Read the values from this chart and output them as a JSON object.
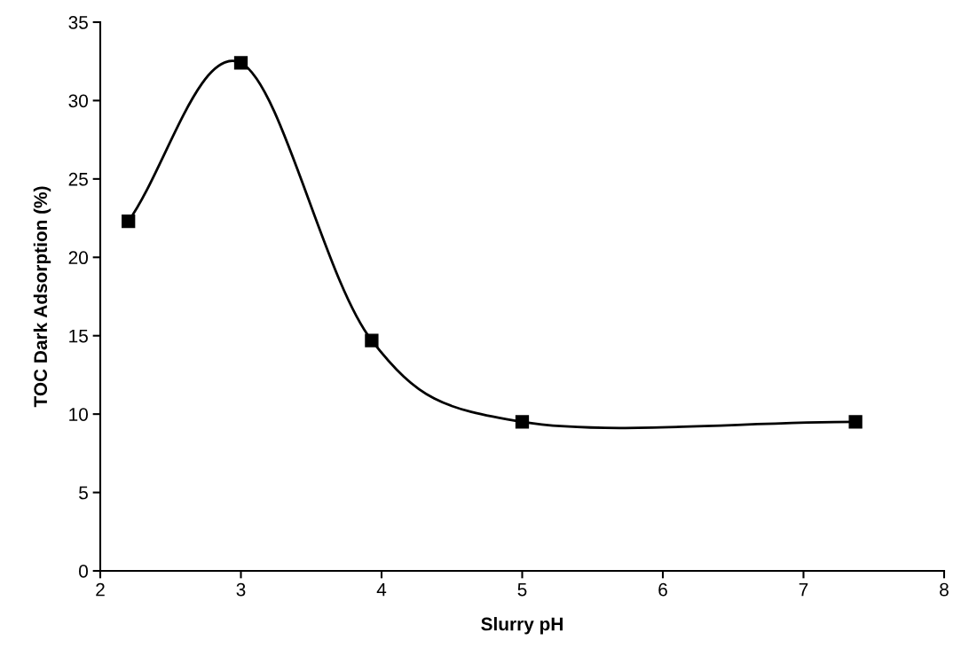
{
  "chart_data": {
    "type": "line",
    "xlabel": "Slurry pH",
    "ylabel": "TOC Dark Adsorption (%)",
    "x": [
      2.2,
      3.0,
      3.93,
      5.0,
      7.37
    ],
    "series": [
      {
        "color": "#000000",
        "values": [
          22.3,
          32.4,
          14.7,
          9.5,
          9.5
        ]
      }
    ],
    "marker": "square",
    "line_style": "solid",
    "grid": false,
    "legend": false,
    "xlim": [
      2,
      8
    ],
    "xticks": [
      2,
      3,
      4,
      5,
      6,
      7,
      8
    ],
    "ylim": [
      0,
      35
    ],
    "yticks": [
      0,
      5,
      10,
      15,
      20,
      25,
      30,
      35
    ]
  }
}
